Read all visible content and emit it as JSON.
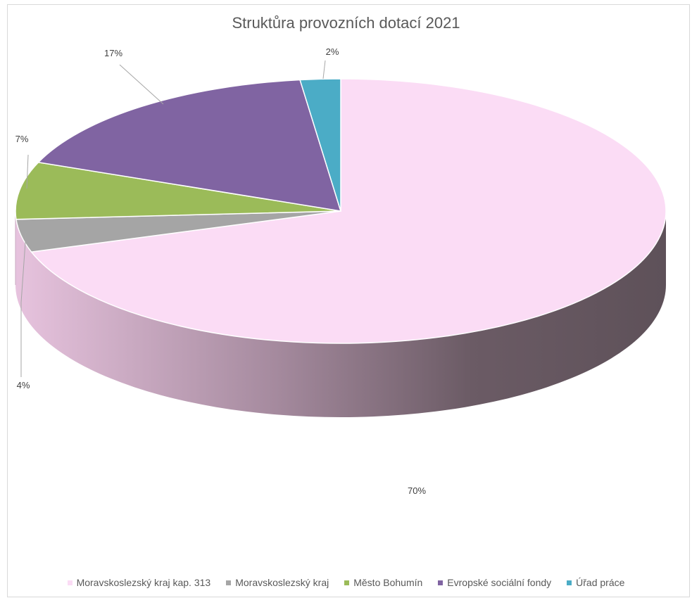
{
  "chart_data": {
    "type": "pie",
    "title": "Struktůra provozních dotací 2021",
    "categories": [
      "Moravskoslezský kraj kap. 313",
      "Moravskoslezský kraj",
      "Město Bohumín",
      "Evropské sociální fondy",
      "Úřad práce"
    ],
    "values": [
      70,
      4,
      7,
      17,
      2
    ],
    "data_labels": [
      "70%",
      "4%",
      "7%",
      "17%",
      "2%"
    ],
    "colors": [
      "#fbdcf5",
      "#a5a5a5",
      "#9bbb59",
      "#8064a2",
      "#4bacc6"
    ],
    "legend_position": "bottom",
    "style": "3d"
  }
}
